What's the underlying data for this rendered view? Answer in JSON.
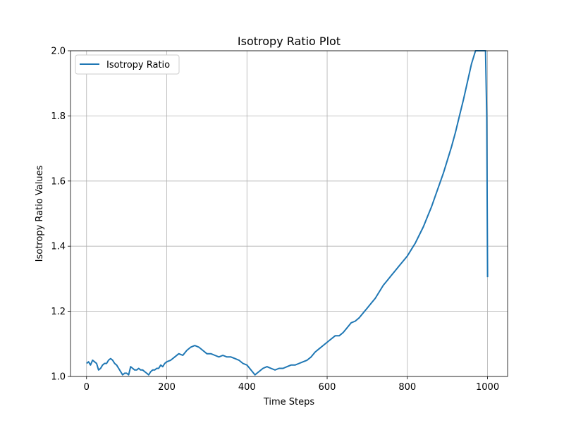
{
  "chart_data": {
    "type": "line",
    "title": "Isotropy Ratio Plot",
    "xlabel": "Time Steps",
    "ylabel": "Isotropy Ratio Values",
    "xlim": [
      -40,
      1050
    ],
    "ylim": [
      1.0,
      2.0
    ],
    "xticks": [
      0,
      200,
      400,
      600,
      800,
      1000
    ],
    "yticks": [
      1.0,
      1.2,
      1.4,
      1.6,
      1.8,
      2.0
    ],
    "xtick_labels": [
      "0",
      "200",
      "400",
      "600",
      "800",
      "1000"
    ],
    "ytick_labels": [
      "1.0",
      "1.2",
      "1.4",
      "1.6",
      "1.8",
      "2.0"
    ],
    "grid": true,
    "legend_position": "top-left",
    "series": [
      {
        "name": "Isotropy Ratio",
        "color": "#1f77b4",
        "x": [
          0,
          5,
          10,
          15,
          20,
          25,
          30,
          35,
          40,
          45,
          50,
          55,
          60,
          65,
          70,
          75,
          80,
          85,
          90,
          95,
          100,
          105,
          110,
          115,
          120,
          125,
          130,
          135,
          140,
          145,
          150,
          155,
          160,
          165,
          170,
          175,
          180,
          185,
          190,
          195,
          200,
          210,
          220,
          230,
          240,
          250,
          260,
          270,
          280,
          290,
          300,
          310,
          320,
          330,
          340,
          350,
          360,
          370,
          380,
          390,
          400,
          410,
          420,
          425,
          430,
          440,
          450,
          460,
          470,
          480,
          490,
          500,
          510,
          520,
          530,
          540,
          550,
          560,
          570,
          580,
          590,
          600,
          610,
          620,
          630,
          640,
          650,
          660,
          670,
          680,
          690,
          700,
          710,
          720,
          730,
          740,
          750,
          760,
          770,
          780,
          790,
          800,
          810,
          820,
          830,
          840,
          850,
          860,
          870,
          880,
          890,
          900,
          910,
          920,
          930,
          940,
          950,
          960,
          970,
          980,
          985,
          990,
          995,
          998,
          1000
        ],
        "y": [
          1.04,
          1.045,
          1.035,
          1.05,
          1.045,
          1.04,
          1.02,
          1.025,
          1.035,
          1.04,
          1.04,
          1.05,
          1.055,
          1.05,
          1.04,
          1.035,
          1.025,
          1.015,
          1.005,
          1.01,
          1.01,
          1.005,
          1.03,
          1.025,
          1.02,
          1.02,
          1.025,
          1.02,
          1.02,
          1.015,
          1.01,
          1.005,
          1.015,
          1.02,
          1.02,
          1.025,
          1.025,
          1.035,
          1.03,
          1.04,
          1.045,
          1.05,
          1.06,
          1.07,
          1.065,
          1.08,
          1.09,
          1.095,
          1.09,
          1.08,
          1.07,
          1.07,
          1.065,
          1.06,
          1.065,
          1.06,
          1.06,
          1.055,
          1.05,
          1.04,
          1.035,
          1.02,
          1.005,
          1.01,
          1.015,
          1.025,
          1.03,
          1.025,
          1.02,
          1.025,
          1.025,
          1.03,
          1.035,
          1.035,
          1.04,
          1.045,
          1.05,
          1.06,
          1.075,
          1.085,
          1.095,
          1.105,
          1.115,
          1.125,
          1.125,
          1.135,
          1.15,
          1.165,
          1.17,
          1.18,
          1.195,
          1.21,
          1.225,
          1.24,
          1.26,
          1.28,
          1.295,
          1.31,
          1.325,
          1.34,
          1.355,
          1.37,
          1.39,
          1.41,
          1.435,
          1.46,
          1.49,
          1.52,
          1.555,
          1.59,
          1.625,
          1.665,
          1.705,
          1.75,
          1.8,
          1.85,
          1.905,
          1.96,
          2.0,
          2.0,
          2.0,
          2.0,
          2.0,
          1.8,
          1.305
        ]
      }
    ]
  }
}
